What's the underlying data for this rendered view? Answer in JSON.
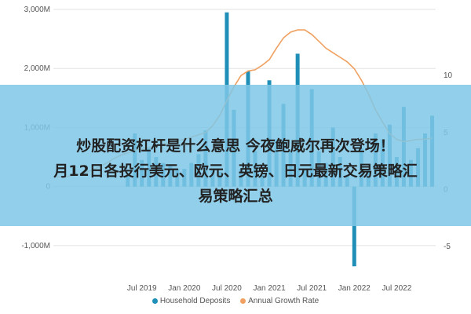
{
  "chart_data": {
    "type": "bar",
    "ylim": [
      -1400,
      3000
    ],
    "y2lim": [
      -7,
      15.8
    ],
    "y_ticks": [
      {
        "v": 3000,
        "label": "3,000M"
      },
      {
        "v": 2000,
        "label": "2,000M"
      },
      {
        "v": 1000,
        "label": "1,000M"
      },
      {
        "v": 0,
        "label": "0"
      },
      {
        "v": -1000,
        "label": "-1,000M"
      }
    ],
    "y2_ticks": [
      {
        "v": 10,
        "label": "10"
      },
      {
        "v": 5,
        "label": "5"
      },
      {
        "v": 0,
        "label": "0"
      },
      {
        "v": -5,
        "label": "-5"
      }
    ],
    "x_ticks": [
      {
        "i": 12,
        "label": "Jul 2019"
      },
      {
        "i": 18,
        "label": "Jan 2020"
      },
      {
        "i": 24,
        "label": "Jul 2020"
      },
      {
        "i": 30,
        "label": "Jan 2021"
      },
      {
        "i": 36,
        "label": "Jul 2021"
      },
      {
        "i": 42,
        "label": "Jan 2022"
      },
      {
        "i": 48,
        "label": "Jul 2022"
      }
    ],
    "grid": true,
    "legend_position": "bottom",
    "series": [
      {
        "name": "Household Deposits",
        "type": "bar",
        "color": "#1f8fb8",
        "values": [
          0,
          0,
          0,
          0,
          0,
          0,
          0,
          0,
          0,
          0,
          200,
          900,
          450,
          650,
          500,
          400,
          350,
          300,
          300,
          400,
          550,
          950,
          300,
          250,
          2950,
          1300,
          300,
          1950,
          600,
          200,
          1800,
          800,
          1400,
          600,
          2250,
          300,
          1650,
          600,
          400,
          1000,
          500,
          200,
          -1350,
          650,
          300,
          900,
          800,
          1050,
          500,
          1350,
          450,
          650,
          900,
          1200
        ]
      },
      {
        "name": "Annual Growth Rate",
        "type": "line",
        "color": "#f0a060",
        "values": [
          1.1,
          1.1,
          1.2,
          1.3,
          1.5,
          1.7,
          2.0,
          2.3,
          2.7,
          3.0,
          3.2,
          3.4,
          3.6,
          3.7,
          3.8,
          4.0,
          4.1,
          4.3,
          4.4,
          4.6,
          4.8,
          5.0,
          5.6,
          6.5,
          7.8,
          9.0,
          10.0,
          10.4,
          10.5,
          10.9,
          11.4,
          12.4,
          13.3,
          13.8,
          14.0,
          14.0,
          13.6,
          13.0,
          12.4,
          12.0,
          11.6,
          11.2,
          10.6,
          9.6,
          8.4,
          7.0,
          5.9,
          4.9,
          4.4,
          4.2,
          4.3,
          4.4,
          4.4,
          4.5
        ]
      }
    ]
  },
  "banner": {
    "line1": "炒股配资杠杆是什么意思 今夜鲍威尔再次登场！",
    "line2": "月12日各投行美元、欧元、英镑、日元最新交易策略汇",
    "line3": "易策略汇总"
  }
}
